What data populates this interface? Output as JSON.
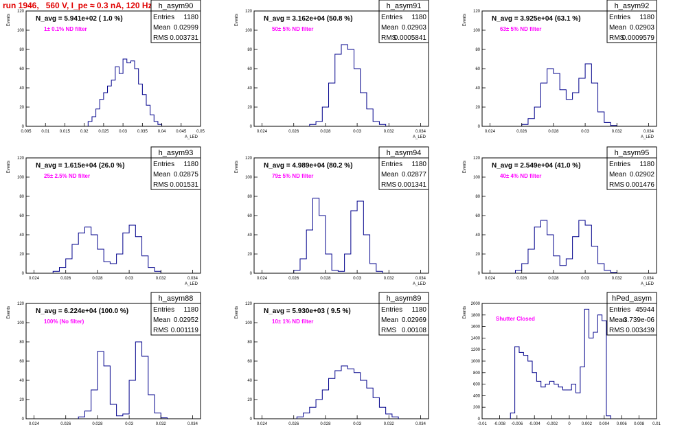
{
  "page_title": "run 1946,   560 V, I_pe ≈ 0.3 nA, 120 Hz",
  "colors": {
    "hist": "#00008b",
    "annotation": "#ff00ff",
    "title_red": "#e00000"
  },
  "chart_data": [
    {
      "type": "histogram",
      "title": "h_asym90",
      "stats": {
        "entries": "1180",
        "mean": "0.02999",
        "rms": "0.003731"
      },
      "navg": "N_avg = 5.941e+02 ( 1.0 %)",
      "annotation": "1± 0.1% ND filter",
      "ylabel": "Events",
      "xlabel": "A_LED",
      "xlim": [
        0.005,
        0.05
      ],
      "ylim": [
        0,
        120
      ],
      "xticks": [
        "0.005",
        "0.01",
        "0.015",
        "0.02",
        "0.025",
        "0.03",
        "0.035",
        "0.04",
        "0.045",
        "0.05"
      ],
      "xtick_values": [
        0.005,
        0.01,
        0.015,
        0.02,
        0.025,
        0.03,
        0.035,
        0.04,
        0.045,
        0.05
      ],
      "yticks": [
        0,
        20,
        40,
        60,
        80,
        100,
        120
      ],
      "x": [
        0.0215,
        0.0225,
        0.0235,
        0.0245,
        0.0255,
        0.0265,
        0.0275,
        0.0285,
        0.0295,
        0.0305,
        0.0315,
        0.0325,
        0.0335,
        0.0345,
        0.0355,
        0.0365,
        0.0375,
        0.0385,
        0.0395
      ],
      "y": [
        5,
        10,
        18,
        28,
        35,
        42,
        48,
        62,
        55,
        70,
        66,
        68,
        60,
        44,
        33,
        22,
        12,
        5,
        2
      ]
    },
    {
      "type": "histogram",
      "title": "h_asym91",
      "stats": {
        "entries": "1180",
        "mean": "0.02903",
        "rms": "0.0005841"
      },
      "navg": "N_avg = 3.162e+04 (50.8 %)",
      "annotation": "50± 5% ND filter",
      "ylabel": "Events",
      "xlabel": "A_LED",
      "xlim": [
        0.0235,
        0.0345
      ],
      "ylim": [
        0,
        120
      ],
      "xticks": [
        "0.024",
        "0.026",
        "0.028",
        "0.03",
        "0.032",
        "0.034"
      ],
      "xtick_values": [
        0.024,
        0.026,
        0.028,
        0.03,
        0.032,
        0.034
      ],
      "yticks": [
        0,
        20,
        40,
        60,
        80,
        100,
        120
      ],
      "x": [
        0.0272,
        0.0276,
        0.028,
        0.0284,
        0.0288,
        0.0292,
        0.0296,
        0.03,
        0.0304,
        0.0308,
        0.0312,
        0.0316
      ],
      "y": [
        2,
        5,
        20,
        45,
        75,
        85,
        80,
        60,
        35,
        18,
        5,
        2
      ]
    },
    {
      "type": "histogram",
      "title": "h_asym92",
      "stats": {
        "entries": "1180",
        "mean": "0.02903",
        "rms": "0.0009579"
      },
      "navg": "N_avg = 3.925e+04 (63.1 %)",
      "annotation": "63± 5% ND filter",
      "ylabel": "Events",
      "xlabel": "A_LED",
      "xlim": [
        0.0235,
        0.0345
      ],
      "ylim": [
        0,
        120
      ],
      "xticks": [
        "0.024",
        "0.026",
        "0.028",
        "0.03",
        "0.032",
        "0.034"
      ],
      "xtick_values": [
        0.024,
        0.026,
        0.028,
        0.03,
        0.032,
        0.034
      ],
      "yticks": [
        0,
        20,
        40,
        60,
        80,
        100,
        120
      ],
      "x": [
        0.0262,
        0.0266,
        0.027,
        0.0274,
        0.0278,
        0.0282,
        0.0286,
        0.029,
        0.0294,
        0.0298,
        0.0302,
        0.0306,
        0.031,
        0.0314,
        0.0318
      ],
      "y": [
        2,
        8,
        20,
        45,
        60,
        55,
        38,
        28,
        35,
        50,
        65,
        45,
        15,
        4,
        1
      ]
    },
    {
      "type": "histogram",
      "title": "h_asym93",
      "stats": {
        "entries": "1180",
        "mean": "0.02875",
        "rms": "0.001531"
      },
      "navg": "N_avg = 1.615e+04 (26.0 %)",
      "annotation": "25± 2.5% ND filter",
      "ylabel": "Events",
      "xlabel": "A_LED",
      "xlim": [
        0.0235,
        0.0345
      ],
      "ylim": [
        0,
        120
      ],
      "xticks": [
        "0.024",
        "0.026",
        "0.028",
        "0.03",
        "0.032",
        "0.034"
      ],
      "xtick_values": [
        0.024,
        0.026,
        0.028,
        0.03,
        0.032,
        0.034
      ],
      "yticks": [
        0,
        20,
        40,
        60,
        80,
        100,
        120
      ],
      "x": [
        0.0254,
        0.0258,
        0.0262,
        0.0266,
        0.027,
        0.0274,
        0.0278,
        0.0282,
        0.0286,
        0.029,
        0.0294,
        0.0298,
        0.0302,
        0.0306,
        0.031,
        0.0314,
        0.0318
      ],
      "y": [
        2,
        6,
        15,
        30,
        42,
        48,
        40,
        25,
        12,
        10,
        20,
        42,
        50,
        38,
        18,
        6,
        2
      ]
    },
    {
      "type": "histogram",
      "title": "h_asym94",
      "stats": {
        "entries": "1180",
        "mean": "0.02877",
        "rms": "0.001341"
      },
      "navg": "N_avg = 4.989e+04 (80.2 %)",
      "annotation": "79± 5% ND filter",
      "ylabel": "Events",
      "xlabel": "A_LED",
      "xlim": [
        0.0235,
        0.0345
      ],
      "ylim": [
        0,
        120
      ],
      "xticks": [
        "0.024",
        "0.026",
        "0.028",
        "0.03",
        "0.032",
        "0.034"
      ],
      "xtick_values": [
        0.024,
        0.026,
        0.028,
        0.03,
        0.032,
        0.034
      ],
      "yticks": [
        0,
        20,
        40,
        60,
        80,
        100,
        120
      ],
      "x": [
        0.0262,
        0.0266,
        0.027,
        0.0274,
        0.0278,
        0.0282,
        0.0286,
        0.029,
        0.0294,
        0.0298,
        0.0302,
        0.0306,
        0.031,
        0.0314
      ],
      "y": [
        3,
        15,
        45,
        78,
        60,
        20,
        3,
        2,
        20,
        65,
        75,
        40,
        10,
        2
      ]
    },
    {
      "type": "histogram",
      "title": "h_asym95",
      "stats": {
        "entries": "1180",
        "mean": "0.02902",
        "rms": "0.001476"
      },
      "navg": "N_avg = 2.549e+04 (41.0 %)",
      "annotation": "40± 4% ND filter",
      "ylabel": "Events",
      "xlabel": "A_LED",
      "xlim": [
        0.0235,
        0.0345
      ],
      "ylim": [
        0,
        120
      ],
      "xticks": [
        "0.024",
        "0.026",
        "0.028",
        "0.03",
        "0.032",
        "0.034"
      ],
      "xtick_values": [
        0.024,
        0.026,
        0.028,
        0.03,
        0.032,
        0.034
      ],
      "yticks": [
        0,
        20,
        40,
        60,
        80,
        100,
        120
      ],
      "x": [
        0.0258,
        0.0262,
        0.0266,
        0.027,
        0.0274,
        0.0278,
        0.0282,
        0.0286,
        0.029,
        0.0294,
        0.0298,
        0.0302,
        0.0306,
        0.031,
        0.0314,
        0.0318
      ],
      "y": [
        3,
        10,
        25,
        48,
        55,
        40,
        18,
        8,
        15,
        38,
        55,
        50,
        28,
        10,
        3,
        1
      ]
    },
    {
      "type": "histogram",
      "title": "h_asym88",
      "stats": {
        "entries": "1180",
        "mean": "0.02952",
        "rms": "0.001119"
      },
      "navg": "N_avg = 6.224e+04 (100.0 %)",
      "annotation": "100% (No filter)",
      "ylabel": "Events",
      "xlabel": "A_LED",
      "xlim": [
        0.0235,
        0.0345
      ],
      "ylim": [
        0,
        120
      ],
      "xticks": [
        "0.024",
        "0.026",
        "0.028",
        "0.03",
        "0.032",
        "0.034"
      ],
      "xtick_values": [
        0.024,
        0.026,
        0.028,
        0.03,
        0.032,
        0.034
      ],
      "yticks": [
        0,
        20,
        40,
        60,
        80,
        100,
        120
      ],
      "x": [
        0.027,
        0.0274,
        0.0278,
        0.0282,
        0.0286,
        0.029,
        0.0294,
        0.0298,
        0.0302,
        0.0306,
        0.031,
        0.0314,
        0.0318,
        0.0322
      ],
      "y": [
        2,
        8,
        30,
        70,
        55,
        15,
        3,
        5,
        40,
        80,
        65,
        25,
        6,
        1
      ]
    },
    {
      "type": "histogram",
      "title": "h_asym89",
      "stats": {
        "entries": "1180",
        "mean": "0.02969",
        "rms": "0.00108"
      },
      "navg": "N_avg = 5.930e+03 ( 9.5 %)",
      "annotation": "10± 1% ND filter",
      "ylabel": "Events",
      "xlabel": "A_LED",
      "xlim": [
        0.0235,
        0.0345
      ],
      "ylim": [
        0,
        120
      ],
      "xticks": [
        "0.024",
        "0.026",
        "0.028",
        "0.03",
        "0.032",
        "0.034"
      ],
      "xtick_values": [
        0.024,
        0.026,
        0.028,
        0.03,
        0.032,
        0.034
      ],
      "yticks": [
        0,
        20,
        40,
        60,
        80,
        100,
        120
      ],
      "x": [
        0.0264,
        0.0268,
        0.0272,
        0.0276,
        0.028,
        0.0284,
        0.0288,
        0.0292,
        0.0296,
        0.03,
        0.0304,
        0.0308,
        0.0312,
        0.0316,
        0.032,
        0.0324
      ],
      "y": [
        2,
        6,
        12,
        20,
        30,
        42,
        50,
        55,
        52,
        48,
        40,
        32,
        22,
        12,
        5,
        2
      ]
    },
    {
      "type": "histogram",
      "title": "hPed_asym",
      "stats": {
        "entries": "45944",
        "mean": "-3.739e-06",
        "rms": "0.003439"
      },
      "navg": "",
      "annotation": "Shutter Closed",
      "ylabel": "Events",
      "xlabel": "",
      "xlim": [
        -0.01,
        0.01
      ],
      "ylim": [
        0,
        2000
      ],
      "xticks": [
        "-0.01",
        "-0.008",
        "-0.006",
        "-0.004",
        "-0.002",
        "0",
        "0.002",
        "0.004",
        "0.006",
        "0.008",
        "0.01"
      ],
      "xtick_values": [
        -0.01,
        -0.008,
        -0.006,
        -0.004,
        -0.002,
        0,
        0.002,
        0.004,
        0.006,
        0.008,
        0.01
      ],
      "yticks": [
        0,
        200,
        400,
        600,
        800,
        1000,
        1200,
        1400,
        1600,
        1800,
        2000
      ],
      "x": [
        -0.0065,
        -0.006,
        -0.0055,
        -0.005,
        -0.0045,
        -0.004,
        -0.0035,
        -0.003,
        -0.0025,
        -0.002,
        -0.0015,
        -0.001,
        -0.0005,
        0.0,
        0.0005,
        0.001,
        0.0015,
        0.002,
        0.0025,
        0.003,
        0.0035,
        0.004,
        0.0045
      ],
      "y": [
        100,
        1250,
        1150,
        1100,
        1000,
        800,
        650,
        550,
        600,
        650,
        600,
        550,
        500,
        500,
        600,
        450,
        900,
        1900,
        1400,
        1500,
        1800,
        1700,
        50
      ]
    }
  ]
}
